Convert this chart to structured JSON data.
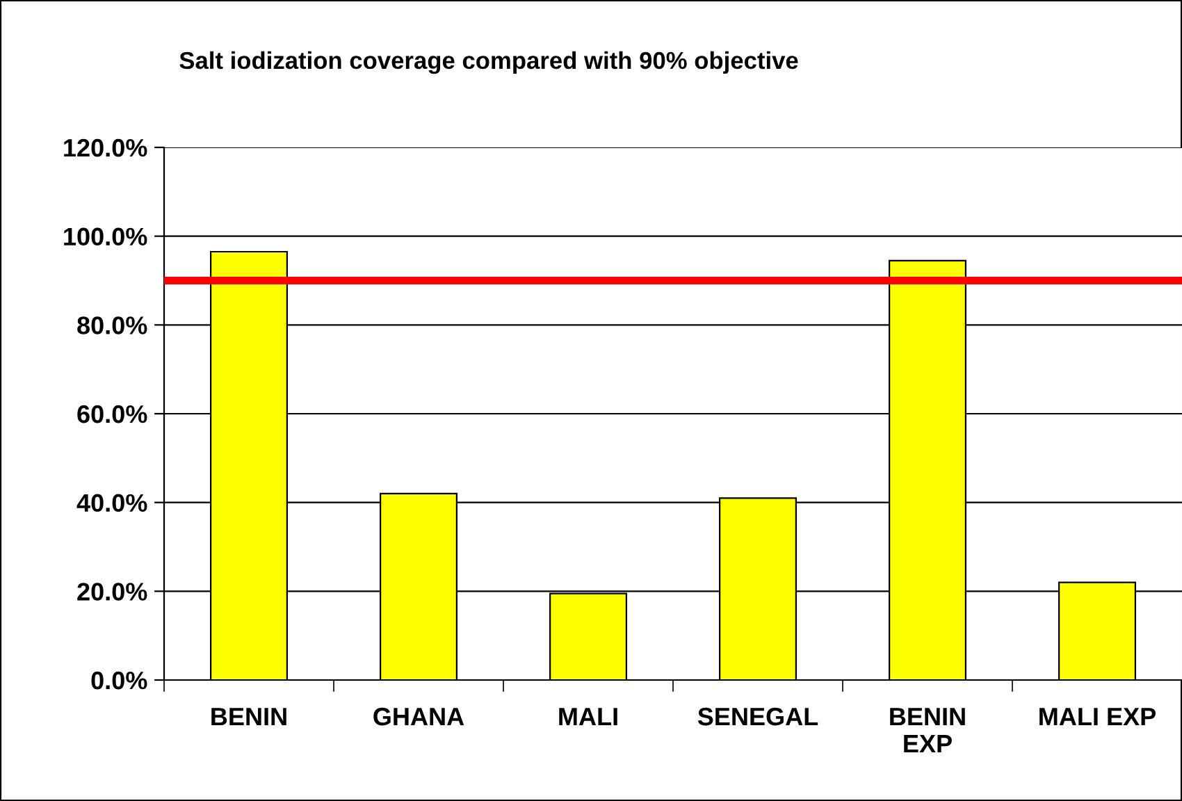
{
  "chart_data": {
    "type": "bar",
    "title": "Salt iodization coverage compared with 90% objective",
    "categories": [
      "BENIN",
      "GHANA",
      "MALI",
      "SENEGAL",
      "BENIN\nEXP",
      "MALI EXP"
    ],
    "values": [
      96.5,
      42,
      19.5,
      41,
      94.5,
      22
    ],
    "color": "#ffff00",
    "ylim": [
      0,
      120
    ],
    "yticks": [
      {
        "value": 0,
        "label": "0.0%"
      },
      {
        "value": 20,
        "label": "20.0%"
      },
      {
        "value": 40,
        "label": "40.0%"
      },
      {
        "value": 60,
        "label": "60.0%"
      },
      {
        "value": 80,
        "label": "80.0%"
      },
      {
        "value": 100,
        "label": "100.0%"
      },
      {
        "value": 120,
        "label": "120.0%"
      }
    ],
    "grid": "y",
    "ref_lines": [
      {
        "axis": "y",
        "value": 90,
        "color": "#ff0000"
      }
    ]
  }
}
